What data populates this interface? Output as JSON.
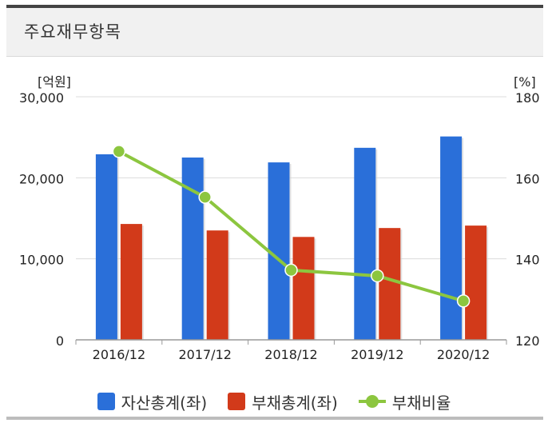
{
  "header": {
    "title": "주요재무항목"
  },
  "colors": {
    "assets": "#2a6fd9",
    "liabilities": "#d23a1a",
    "ratio": "#8cc63f",
    "gridline": "#dcdcdc",
    "axis": "#999999",
    "text": "#222222"
  },
  "chart_data": {
    "type": "bar",
    "categories": [
      "2016/12",
      "2017/12",
      "2018/12",
      "2019/12",
      "2020/12"
    ],
    "series": [
      {
        "name": "자산총계(좌)",
        "type": "bar",
        "axis": "left",
        "values": [
          22900,
          22500,
          21900,
          23700,
          25100
        ]
      },
      {
        "name": "부채총계(좌)",
        "type": "bar",
        "axis": "left",
        "values": [
          14300,
          13500,
          12700,
          13800,
          14100
        ]
      },
      {
        "name": "부채비율",
        "type": "line",
        "axis": "right",
        "values": [
          166.5,
          155.2,
          137.2,
          135.8,
          129.6
        ]
      }
    ],
    "left_axis": {
      "unit": "[억원]",
      "ylim": [
        0,
        30000
      ],
      "ticks": [
        "0",
        "10,000",
        "20,000",
        "30,000"
      ],
      "tick_values": [
        0,
        10000,
        20000,
        30000
      ]
    },
    "right_axis": {
      "unit": "[%]",
      "ylim": [
        120,
        180
      ],
      "ticks": [
        "120",
        "140",
        "160",
        "180"
      ],
      "tick_values": [
        120,
        140,
        160,
        180
      ]
    },
    "grid": true,
    "legend_position": "bottom"
  }
}
